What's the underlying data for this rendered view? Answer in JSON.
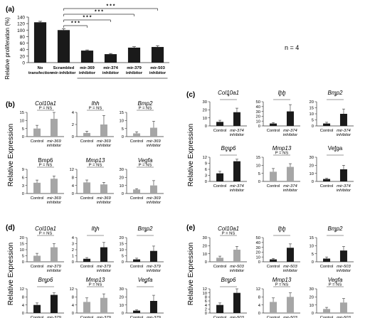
{
  "panel_a": {
    "label": "(a)",
    "ylabel": "Relative proliferation (%)",
    "n_text": "n = 4",
    "sig": "* * *"
  },
  "panel_labels": {
    "b": "(b)",
    "c": "(c)",
    "d": "(d)",
    "e": "(e)"
  },
  "shared": {
    "ylabel": "Relative Expression",
    "sig_ns": "P = NS"
  },
  "colors": {
    "black_bar": "#1a1a1a",
    "gray_bar": "#a6a6a6",
    "axis": "#333333"
  },
  "chart_data": [
    {
      "panel": "a",
      "type": "bar",
      "categories": [
        "No transfection",
        "Scrambled mir-inhibitor",
        "mir-369 inhibitor",
        "mir-374 inhibitor",
        "mir-379 inhibitor",
        "mir-503 inhibitor"
      ],
      "values": [
        124,
        100,
        37,
        26,
        46,
        48
      ],
      "errors": [
        3,
        4,
        2,
        2,
        3,
        4
      ],
      "ylim": [
        0,
        140
      ],
      "yticks": [
        0,
        20,
        40,
        60,
        80,
        100,
        120,
        140
      ],
      "ylabel": "Relative proliferation (%)",
      "colors": [
        "#1a1a1a",
        "#1a1a1a",
        "#1a1a1a",
        "#1a1a1a",
        "#1a1a1a",
        "#1a1a1a"
      ],
      "significance": [
        {
          "from": 1,
          "to": 2,
          "label": "* * *"
        },
        {
          "from": 1,
          "to": 3,
          "label": "* * *"
        },
        {
          "from": 1,
          "to": 4,
          "label": "* * *"
        },
        {
          "from": 1,
          "to": 5,
          "label": "* * *"
        }
      ]
    },
    {
      "panel": "b",
      "type": "bar",
      "gene": "Col10a1",
      "italic": true,
      "categories": [
        "Control",
        "mir-369 inhibitor"
      ],
      "values": [
        5,
        11
      ],
      "errors": [
        2,
        5
      ],
      "ylim": [
        0,
        15
      ],
      "yticks": [
        0,
        5,
        10,
        15
      ],
      "sig": "P = NS",
      "colors": [
        "#a6a6a6",
        "#a6a6a6"
      ]
    },
    {
      "panel": "b",
      "type": "bar",
      "gene": "Ihh",
      "italic": true,
      "categories": [
        "Control",
        "mir-369 inhibitor"
      ],
      "values": [
        0.6,
        2.0
      ],
      "errors": [
        0.3,
        1.5
      ],
      "ylim": [
        0,
        4
      ],
      "yticks": [
        0,
        2,
        4
      ],
      "sig": "P = NS",
      "colors": [
        "#a6a6a6",
        "#a6a6a6"
      ]
    },
    {
      "panel": "b",
      "type": "bar",
      "gene": "Bmp2",
      "italic": true,
      "categories": [
        "Control",
        "mir-369 inhibitor"
      ],
      "values": [
        2,
        5.5
      ],
      "errors": [
        1,
        4
      ],
      "ylim": [
        0,
        15
      ],
      "yticks": [
        0,
        5,
        10,
        15
      ],
      "sig": "P = NS",
      "colors": [
        "#a6a6a6",
        "#a6a6a6"
      ]
    },
    {
      "panel": "b",
      "type": "bar",
      "gene": "Bmp6",
      "italic": false,
      "categories": [
        "Control",
        "mir-369 inhibitor"
      ],
      "values": [
        4,
        5.5
      ],
      "errors": [
        1,
        1
      ],
      "ylim": [
        0,
        9
      ],
      "yticks": [
        0,
        3,
        6,
        9
      ],
      "sig": "P = NS",
      "colors": [
        "#a6a6a6",
        "#a6a6a6"
      ]
    },
    {
      "panel": "b",
      "type": "bar",
      "gene": "Mmp13",
      "italic": true,
      "categories": [
        "Control",
        "mir-369 inhibitor"
      ],
      "values": [
        5.5,
        4.5
      ],
      "errors": [
        1.2,
        1
      ],
      "ylim": [
        0,
        12
      ],
      "yticks": [
        0,
        4,
        8,
        12
      ],
      "sig": "P = NS",
      "colors": [
        "#a6a6a6",
        "#a6a6a6"
      ]
    },
    {
      "panel": "b",
      "type": "bar",
      "gene": "Vegfa",
      "italic": true,
      "categories": [
        "Control",
        "mir-369 inhibitor"
      ],
      "values": [
        5,
        10
      ],
      "errors": [
        1,
        6
      ],
      "ylim": [
        0,
        30
      ],
      "yticks": [
        0,
        10,
        20,
        30
      ],
      "sig": "P = NS",
      "colors": [
        "#a6a6a6",
        "#a6a6a6"
      ]
    },
    {
      "panel": "c",
      "type": "bar",
      "gene": "Col10a1",
      "italic": true,
      "categories": [
        "Control",
        "mir-374 inhibitor"
      ],
      "values": [
        5,
        17
      ],
      "errors": [
        2,
        5
      ],
      "ylim": [
        0,
        30
      ],
      "yticks": [
        0,
        10,
        20,
        30
      ],
      "sig": "*",
      "colors": [
        "#1a1a1a",
        "#1a1a1a"
      ]
    },
    {
      "panel": "c",
      "type": "bar",
      "gene": "Ihh",
      "italic": true,
      "categories": [
        "Control",
        "mir-374 inhibitor"
      ],
      "values": [
        5,
        30
      ],
      "errors": [
        2,
        14
      ],
      "ylim": [
        0,
        50
      ],
      "yticks": [
        0,
        10,
        20,
        30,
        40,
        50
      ],
      "sig": "* *",
      "colors": [
        "#1a1a1a",
        "#1a1a1a"
      ]
    },
    {
      "panel": "c",
      "type": "bar",
      "gene": "Bmp2",
      "italic": true,
      "categories": [
        "Control",
        "mir-374 inhibitor"
      ],
      "values": [
        2,
        10
      ],
      "errors": [
        1,
        4
      ],
      "ylim": [
        0,
        20
      ],
      "yticks": [
        0,
        5,
        10,
        15,
        20
      ],
      "sig": "*",
      "colors": [
        "#1a1a1a",
        "#1a1a1a"
      ]
    },
    {
      "panel": "c",
      "type": "bar",
      "gene": "Bmp6",
      "italic": true,
      "categories": [
        "Control",
        "mir-374 inhibitor"
      ],
      "values": [
        4,
        10
      ],
      "errors": [
        1,
        1
      ],
      "ylim": [
        0,
        12
      ],
      "yticks": [
        0,
        3,
        6,
        9,
        12
      ],
      "sig": "* *",
      "colors": [
        "#1a1a1a",
        "#1a1a1a"
      ]
    },
    {
      "panel": "c",
      "type": "bar",
      "gene": "Mmp13",
      "italic": true,
      "categories": [
        "Control",
        "mir-374 inhibitor"
      ],
      "values": [
        6,
        9
      ],
      "errors": [
        2,
        2
      ],
      "ylim": [
        0,
        15
      ],
      "yticks": [
        0,
        5,
        10,
        15
      ],
      "sig": "P = NS",
      "colors": [
        "#a6a6a6",
        "#a6a6a6"
      ]
    },
    {
      "panel": "c",
      "type": "bar",
      "gene": "Vefga",
      "italic": false,
      "categories": [
        "Control",
        "mir-374 inhibitor"
      ],
      "values": [
        3,
        15
      ],
      "errors": [
        1,
        5
      ],
      "ylim": [
        0,
        30
      ],
      "yticks": [
        0,
        10,
        20,
        30
      ],
      "sig": "*",
      "colors": [
        "#1a1a1a",
        "#1a1a1a"
      ]
    },
    {
      "panel": "d",
      "type": "bar",
      "gene": "Col10a1",
      "italic": true,
      "categories": [
        "Control",
        "mir-379 inhibitor"
      ],
      "values": [
        5,
        12
      ],
      "errors": [
        2,
        3
      ],
      "ylim": [
        0,
        20
      ],
      "yticks": [
        0,
        5,
        10,
        15,
        20
      ],
      "sig": "P = NS",
      "colors": [
        "#a6a6a6",
        "#a6a6a6"
      ]
    },
    {
      "panel": "d",
      "type": "bar",
      "gene": "Ihh",
      "italic": true,
      "categories": [
        "Control",
        "mir-379 inhibitor"
      ],
      "values": [
        0.5,
        2.4
      ],
      "errors": [
        0.2,
        0.8
      ],
      "ylim": [
        0,
        4
      ],
      "yticks": [
        0,
        1,
        2,
        3,
        4
      ],
      "sig": "*",
      "colors": [
        "#1a1a1a",
        "#1a1a1a"
      ]
    },
    {
      "panel": "d",
      "type": "bar",
      "gene": "Bmp2",
      "italic": true,
      "categories": [
        "Control",
        "mir-379 inhibitor"
      ],
      "values": [
        2,
        9
      ],
      "errors": [
        1,
        4
      ],
      "ylim": [
        0,
        20
      ],
      "yticks": [
        0,
        5,
        10,
        15,
        20
      ],
      "sig": "*",
      "colors": [
        "#1a1a1a",
        "#1a1a1a"
      ]
    },
    {
      "panel": "d",
      "type": "bar",
      "gene": "Bmp6",
      "italic": true,
      "categories": [
        "Control",
        "mir-379 inhibitor"
      ],
      "values": [
        4,
        9
      ],
      "errors": [
        1,
        1
      ],
      "ylim": [
        0,
        12
      ],
      "yticks": [
        0,
        4,
        8,
        12
      ],
      "sig": "*",
      "colors": [
        "#1a1a1a",
        "#1a1a1a"
      ]
    },
    {
      "panel": "d",
      "type": "bar",
      "gene": "Mmp13",
      "italic": true,
      "categories": [
        "Control",
        "mir-379 inhibitor"
      ],
      "values": [
        5.5,
        7.5
      ],
      "errors": [
        2,
        2
      ],
      "ylim": [
        0,
        12
      ],
      "yticks": [
        0,
        4,
        8,
        12
      ],
      "sig": "P = NS",
      "colors": [
        "#a6a6a6",
        "#a6a6a6"
      ]
    },
    {
      "panel": "d",
      "type": "bar",
      "gene": "Vegfa",
      "italic": true,
      "categories": [
        "Control",
        "mir-379 inhibitor"
      ],
      "values": [
        3,
        15
      ],
      "errors": [
        1,
        7
      ],
      "ylim": [
        0,
        30
      ],
      "yticks": [
        0,
        10,
        20,
        30
      ],
      "sig": "*",
      "colors": [
        "#1a1a1a",
        "#1a1a1a"
      ]
    },
    {
      "panel": "e",
      "type": "bar",
      "gene": "Col10a1",
      "italic": true,
      "categories": [
        "Control",
        "mir-503 inhibitor"
      ],
      "values": [
        5,
        15
      ],
      "errors": [
        2,
        4
      ],
      "ylim": [
        0,
        30
      ],
      "yticks": [
        0,
        10,
        20,
        30
      ],
      "sig": "P = NS",
      "colors": [
        "#a6a6a6",
        "#a6a6a6"
      ]
    },
    {
      "panel": "e",
      "type": "bar",
      "gene": "Ihh",
      "italic": true,
      "categories": [
        "Control",
        "mir-503 inhibitor"
      ],
      "values": [
        5,
        29
      ],
      "errors": [
        2,
        8
      ],
      "ylim": [
        0,
        50
      ],
      "yticks": [
        0,
        10,
        20,
        30,
        40,
        50
      ],
      "sig": "* *",
      "colors": [
        "#1a1a1a",
        "#1a1a1a"
      ]
    },
    {
      "panel": "e",
      "type": "bar",
      "gene": "Bmp2",
      "italic": true,
      "categories": [
        "Control",
        "mir-503 inhibitor"
      ],
      "values": [
        2,
        7
      ],
      "errors": [
        1,
        2.5
      ],
      "ylim": [
        0,
        15
      ],
      "yticks": [
        0,
        5,
        10,
        15
      ],
      "sig": "*",
      "colors": [
        "#1a1a1a",
        "#1a1a1a"
      ]
    },
    {
      "panel": "e",
      "type": "bar",
      "gene": "Bmp6",
      "italic": true,
      "categories": [
        "Control",
        "mir-503 inhibitor"
      ],
      "values": [
        4,
        10
      ],
      "errors": [
        1,
        2
      ],
      "ylim": [
        0,
        12
      ],
      "yticks": [
        0,
        2,
        4,
        6,
        8,
        10,
        12
      ],
      "sig": "*",
      "colors": [
        "#1a1a1a",
        "#1a1a1a"
      ]
    },
    {
      "panel": "e",
      "type": "bar",
      "gene": "Mmp13",
      "italic": true,
      "categories": [
        "Control",
        "mir-503 inhibitor"
      ],
      "values": [
        5.5,
        8
      ],
      "errors": [
        2,
        2
      ],
      "ylim": [
        0,
        12
      ],
      "yticks": [
        0,
        4,
        8,
        12
      ],
      "sig": "P = NS",
      "colors": [
        "#a6a6a6",
        "#a6a6a6"
      ]
    },
    {
      "panel": "e",
      "type": "bar",
      "gene": "Vegfa",
      "italic": true,
      "categories": [
        "Control",
        "mir-503 inhibitor"
      ],
      "values": [
        5,
        13
      ],
      "errors": [
        2,
        5
      ],
      "ylim": [
        0,
        30
      ],
      "yticks": [
        0,
        10,
        20,
        30
      ],
      "sig": "P = NS",
      "colors": [
        "#a6a6a6",
        "#a6a6a6"
      ]
    }
  ]
}
